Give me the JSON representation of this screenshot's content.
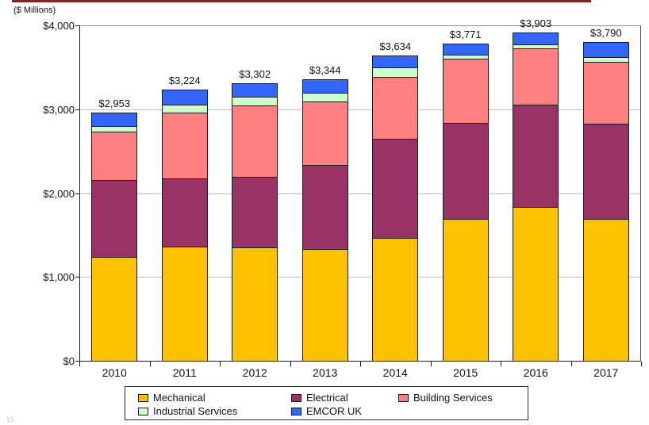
{
  "page": {
    "units_label": "($ Millions)",
    "footer_fragment": "15",
    "top_rule_color": "#7b2622"
  },
  "chart_data": {
    "type": "bar",
    "stacked": true,
    "title": "",
    "ylabel": "($ Millions)",
    "xlabel": "",
    "grid": true,
    "legend_position": "bottom",
    "ylim": [
      0,
      4000
    ],
    "categories": [
      "2010",
      "2011",
      "2012",
      "2013",
      "2014",
      "2015",
      "2016",
      "2017"
    ],
    "series": [
      {
        "name": "Mechanical",
        "color": "#ffc200",
        "values": [
          1230,
          1350,
          1345,
          1325,
          1455,
          1680,
          1825,
          1680
        ]
      },
      {
        "name": "Electrical",
        "color": "#993366",
        "values": [
          920,
          815,
          840,
          1000,
          1180,
          1145,
          1220,
          1135
        ]
      },
      {
        "name": "Building Services",
        "color": "#ff8080",
        "values": [
          575,
          785,
          850,
          755,
          740,
          765,
          670,
          745
        ]
      },
      {
        "name": "Industrial Services",
        "color": "#ccffcc",
        "values": [
          65,
          95,
          105,
          105,
          115,
          55,
          50,
          55
        ]
      },
      {
        "name": "EMCOR UK",
        "color": "#3366ff",
        "values": [
          163,
          179,
          162,
          159,
          144,
          126,
          138,
          175
        ]
      }
    ],
    "totals": [
      2953,
      3224,
      3302,
      3344,
      3634,
      3771,
      3903,
      3790
    ],
    "totals_labels": [
      "$2,953",
      "$3,224",
      "$3,302",
      "$3,344",
      "$3,634",
      "$3,771",
      "$3,903",
      "$3,790"
    ],
    "y_ticks": [
      {
        "value": 4000,
        "label": "$4,000"
      },
      {
        "value": 3000,
        "label": "$3,000"
      },
      {
        "value": 2000,
        "label": "$2,000"
      },
      {
        "value": 1000,
        "label": "$1,000"
      },
      {
        "value": 0,
        "label": "$0"
      }
    ]
  }
}
